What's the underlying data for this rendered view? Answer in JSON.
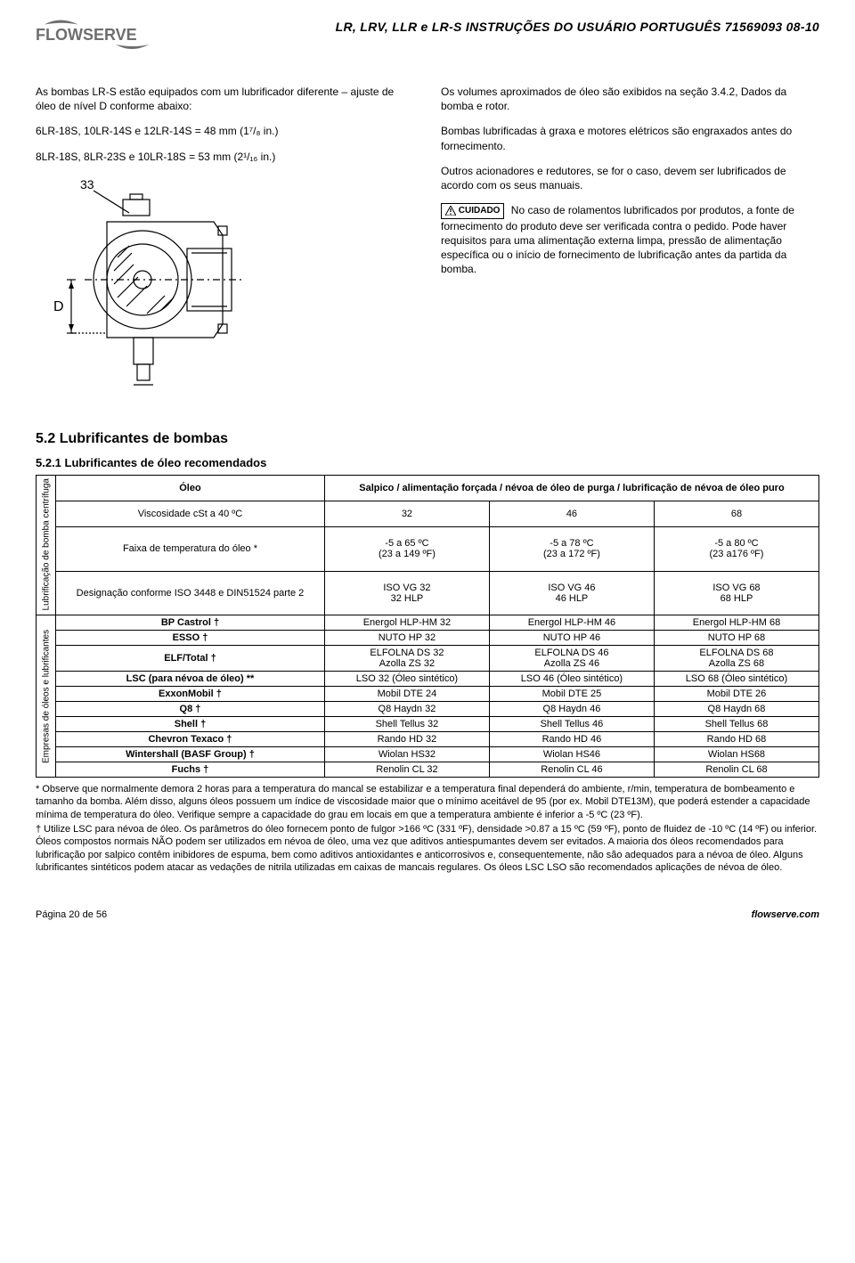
{
  "header": {
    "title": "LR, LRV, LLR e LR-S INSTRUÇÕES DO USUÁRIO PORTUGUÊS 71569093  08-10",
    "logo_text": "FLOWSERVE",
    "logo_color": "#6e6e6e"
  },
  "left": {
    "p1": "As bombas LR-S estão equipados com um lubrificador diferente – ajuste de óleo de nível D conforme abaixo:",
    "p2": "6LR-18S, 10LR-14S e 12LR-14S = 48 mm (1⁷/₈ in.)",
    "p3": "8LR-18S, 8LR-23S e 10LR-18S = 53 mm (2¹/₁₆ in.)",
    "label_33": "33",
    "label_D": "D"
  },
  "right": {
    "p1": "Os volumes aproximados de óleo são exibidos na seção 3.4.2, Dados da bomba e rotor.",
    "p2": "Bombas lubrificadas à graxa e motores elétricos são engraxados antes do fornecimento.",
    "p3": "Outros acionadores e redutores, se for o caso, devem ser lubrificados de acordo com os seus manuais.",
    "cuidado": "CUIDADO",
    "p4": " No caso de rolamentos lubrificados por produtos, a fonte de fornecimento do produto deve ser verificada contra o pedido. Pode haver requisitos para uma alimentação externa limpa, pressão de alimentação específica ou o início de fornecimento de lubrificação antes da partida da bomba."
  },
  "sec52": "5.2  Lubrificantes de bombas",
  "sec521": "5.2.1  Lubrificantes de óleo recomendados",
  "table": {
    "rot1": "Lubrificação de bomba centrífuga",
    "rot2": "Empresas de óleos e lubrificantes",
    "h_oil": "Óleo",
    "h_method": "Salpico / alimentação forçada / névoa de óleo de purga / lubrificação de névoa de óleo puro",
    "rows1": [
      [
        "Viscosidade cSt a 40 ºC",
        "32",
        "46",
        "68"
      ],
      [
        "Faixa de temperatura do óleo *",
        "-5 a 65 ºC\n(23 a 149 ºF)",
        "-5 a 78 ºC\n(23 a 172 ºF)",
        "-5 a 80 ºC\n(23 a176 ºF)"
      ],
      [
        "Designação conforme ISO 3448 e DIN51524 parte 2",
        "ISO VG 32\n32 HLP",
        "ISO VG 46\n46 HLP",
        "ISO VG 68\n68 HLP"
      ]
    ],
    "rows2": [
      [
        "BP Castrol †",
        "Energol HLP-HM 32",
        "Energol HLP-HM 46",
        "Energol HLP-HM 68"
      ],
      [
        "ESSO †",
        "NUTO HP 32",
        "NUTO HP 46",
        "NUTO HP 68"
      ],
      [
        "ELF/Total †",
        "ELFOLNA DS 32\nAzolla ZS 32",
        "ELFOLNA DS 46\nAzolla ZS 46",
        "ELFOLNA DS 68\nAzolla ZS 68"
      ],
      [
        "LSC (para névoa de óleo) **",
        "LSO 32 (Óleo sintético)",
        "LSO 46 (Óleo sintético)",
        "LSO 68 (Óleo sintético)"
      ],
      [
        "ExxonMobil †",
        "Mobil DTE 24",
        "Mobil DTE 25",
        "Mobil DTE 26"
      ],
      [
        "Q8 †",
        "Q8 Haydn 32",
        "Q8 Haydn 46",
        "Q8 Haydn 68"
      ],
      [
        "Shell †",
        "Shell Tellus 32",
        "Shell Tellus 46",
        "Shell Tellus 68"
      ],
      [
        "Chevron Texaco †",
        "Rando HD 32",
        "Rando HD 46",
        "Rando HD 68"
      ],
      [
        "Wintershall (BASF Group) †",
        "Wiolan HS32",
        "Wiolan HS46",
        "Wiolan HS68"
      ],
      [
        "Fuchs †",
        "Renolin CL 32",
        "Renolin CL 46",
        "Renolin CL 68"
      ]
    ]
  },
  "footnotes": {
    "f1": "*  Observe que normalmente demora 2 horas para a temperatura do mancal se estabilizar e a temperatura final dependerá do ambiente, r/min, temperatura de bombeamento e tamanho da bomba.  Além disso, alguns óleos possuem um índice de viscosidade maior que o mínimo aceitável de 95 (por ex. Mobil DTE13M), que poderá estender a capacidade mínima de temperatura do óleo.  Verifique sempre a capacidade do grau em locais em que a temperatura ambiente é inferior a -5 ºC (23 ºF).",
    "f2": "†  Utilize LSC para névoa de óleo.  Os parâmetros do óleo fornecem ponto de fulgor >166 ºC (331 ºF), densidade >0.87 a 15 ºC (59 ºF), ponto de fluidez de -10 ºC (14 ºF) ou inferior.  Óleos compostos normais NÃO podem ser utilizados em névoa de óleo, uma vez que aditivos antiespumantes devem ser evitados.  A maioria dos óleos recomendados para lubrificação por salpico contêm inibidores de espuma, bem como aditivos antioxidantes e anticorrosivos e, consequentemente, não são adequados para a névoa de óleo.  Alguns lubrificantes sintéticos podem atacar as vedações de nitrila utilizadas em caixas de mancais regulares.  Os óleos LSC LSO são recomendados aplicações de névoa de óleo."
  },
  "footer": {
    "page": "Página 20 de 56",
    "site": "flowserve.com"
  }
}
